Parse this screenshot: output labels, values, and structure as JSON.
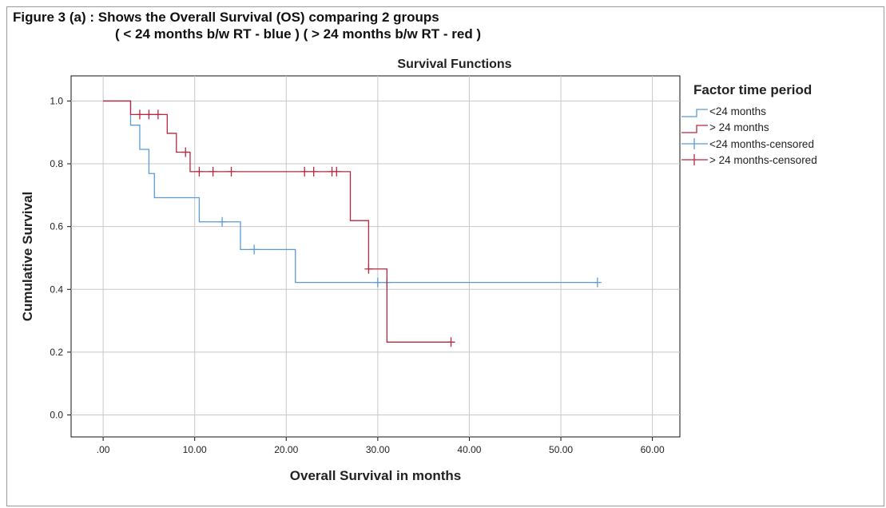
{
  "figure": {
    "caption_line1": "Figure 3 (a) : Shows the Overall Survival (OS) comparing 2 groups",
    "caption_line2": "( < 24 months b/w RT - blue ) ( > 24 months b/w RT - red )"
  },
  "chart_data": {
    "type": "line",
    "step": true,
    "title": "Survival Functions",
    "xlabel": "Overall Survival in months",
    "ylabel": "Cumulative Survival",
    "xlim": [
      -3.5,
      63
    ],
    "ylim": [
      -0.07,
      1.08
    ],
    "xticks": [
      0,
      10,
      20,
      30,
      40,
      50,
      60
    ],
    "xtick_labels": [
      ".00",
      "10.00",
      "20.00",
      "30.00",
      "40.00",
      "50.00",
      "60.00"
    ],
    "yticks": [
      0.0,
      0.2,
      0.4,
      0.6,
      0.8,
      1.0
    ],
    "ytick_labels": [
      "0.0",
      "0.2",
      "0.4",
      "0.6",
      "0.8",
      "1.0"
    ],
    "grid": true,
    "legend": {
      "title": "Factor time period",
      "placement": "right",
      "entries": [
        "<24 months",
        "> 24 months",
        "<24 months-censored",
        "> 24 months-censored"
      ]
    },
    "series": [
      {
        "name": "<24 months",
        "color": "#5b9bd5",
        "steps": [
          [
            0,
            1.0
          ],
          [
            3,
            0.923
          ],
          [
            4,
            0.846
          ],
          [
            5,
            0.769
          ],
          [
            5.6,
            0.692
          ],
          [
            10.5,
            0.615
          ],
          [
            15,
            0.527
          ],
          [
            21,
            0.422
          ],
          [
            54,
            0.422
          ]
        ],
        "censored": [
          [
            13,
            0.615
          ],
          [
            16.5,
            0.527
          ],
          [
            30,
            0.422
          ],
          [
            31,
            0.422
          ],
          [
            54,
            0.422
          ]
        ]
      },
      {
        "name": "> 24 months",
        "color": "#b5283f",
        "steps": [
          [
            0,
            1.0
          ],
          [
            3,
            0.957
          ],
          [
            7,
            0.897
          ],
          [
            8,
            0.837
          ],
          [
            9.5,
            0.775
          ],
          [
            27,
            0.619
          ],
          [
            29,
            0.465
          ],
          [
            31,
            0.232
          ],
          [
            38,
            0.232
          ]
        ],
        "censored": [
          [
            4,
            0.957
          ],
          [
            5,
            0.957
          ],
          [
            6,
            0.957
          ],
          [
            9,
            0.837
          ],
          [
            10.5,
            0.775
          ],
          [
            12,
            0.775
          ],
          [
            14,
            0.775
          ],
          [
            22,
            0.775
          ],
          [
            23,
            0.775
          ],
          [
            25,
            0.775
          ],
          [
            25.5,
            0.775
          ],
          [
            29,
            0.465
          ],
          [
            38,
            0.232
          ]
        ]
      }
    ]
  }
}
